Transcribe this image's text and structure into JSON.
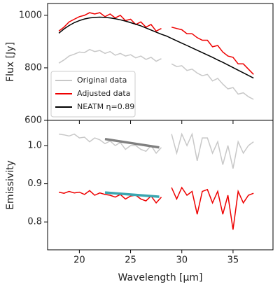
{
  "chart_data": [
    {
      "type": "line",
      "ylabel": "Flux [Jy]",
      "xlim": [
        16.9,
        38.9
      ],
      "xticks": [
        20,
        25,
        30,
        35
      ],
      "ylim": [
        600,
        1045
      ],
      "yticks": [
        600,
        800,
        1000
      ],
      "legend": "lower left",
      "series": [
        {
          "name": "Original data",
          "color": "#c8c8c8",
          "x": [
            18,
            18.5,
            19,
            19.5,
            20,
            20.5,
            21,
            21.5,
            22,
            22.5,
            23,
            23.5,
            24,
            24.5,
            25,
            25.5,
            26,
            26.5,
            27,
            27.5,
            28,
            28.5,
            29,
            29.5,
            30,
            30.5,
            31,
            31.5,
            32,
            32.5,
            33,
            33.5,
            34,
            34.5,
            35,
            35.5,
            36,
            36.5,
            37
          ],
          "values": [
            818,
            830,
            845,
            852,
            860,
            858,
            870,
            862,
            866,
            855,
            862,
            848,
            855,
            845,
            850,
            838,
            845,
            832,
            840,
            825,
            835,
            null,
            815,
            805,
            808,
            790,
            795,
            780,
            770,
            775,
            750,
            760,
            738,
            720,
            725,
            700,
            705,
            690,
            680
          ]
        },
        {
          "name": "Adjusted data",
          "color": "#ee0000",
          "x": [
            18,
            18.5,
            19,
            19.5,
            20,
            20.5,
            21,
            21.5,
            22,
            22.5,
            23,
            23.5,
            24,
            24.5,
            25,
            25.5,
            26,
            26.5,
            27,
            27.5,
            28,
            28.5,
            29,
            29.5,
            30,
            30.5,
            31,
            31.5,
            32,
            32.5,
            33,
            33.5,
            34,
            34.5,
            35,
            35.5,
            36,
            36.5,
            37
          ],
          "values": [
            940,
            955,
            975,
            985,
            995,
            1000,
            1010,
            1005,
            1010,
            995,
            1005,
            990,
            1000,
            980,
            985,
            965,
            975,
            955,
            965,
            940,
            950,
            null,
            955,
            950,
            945,
            930,
            930,
            915,
            905,
            905,
            880,
            885,
            860,
            845,
            840,
            815,
            815,
            795,
            775
          ]
        },
        {
          "name": "NEATM η=0.89",
          "color": "#000000",
          "x": [
            18,
            18.5,
            19,
            19.5,
            20,
            20.5,
            21,
            21.5,
            22,
            22.5,
            23,
            23.5,
            24,
            24.5,
            25,
            25.5,
            26,
            26.5,
            27,
            27.5,
            28,
            28.5,
            29,
            29.5,
            30,
            30.5,
            31,
            31.5,
            32,
            32.5,
            33,
            33.5,
            34,
            34.5,
            35,
            35.5,
            36,
            36.5,
            37
          ],
          "values": [
            932,
            948,
            961,
            972,
            980,
            986,
            990,
            992,
            993,
            992,
            990,
            987,
            983,
            978,
            972,
            966,
            960,
            952,
            944,
            936,
            928,
            921,
            912,
            903,
            894,
            885,
            876,
            867,
            858,
            849,
            840,
            830,
            821,
            811,
            801,
            791,
            781,
            771,
            761
          ]
        }
      ]
    },
    {
      "type": "line",
      "ylabel": "Emissivity",
      "xlabel": "Wavelength [µm]",
      "xlim": [
        16.9,
        38.9
      ],
      "xticks": [
        20,
        25,
        30,
        35
      ],
      "ylim": [
        0.727,
        1.066
      ],
      "yticks": [
        0.8,
        0.9,
        {
          "value": 1,
          "label": "1.0"
        }
      ],
      "series": [
        {
          "color": "#c8c8c8",
          "x": [
            18,
            18.5,
            19,
            19.5,
            20,
            20.5,
            21,
            21.5,
            22,
            22.5,
            23,
            23.5,
            24,
            24.5,
            25,
            25.5,
            26,
            26.5,
            27,
            27.5,
            28,
            28.5,
            29,
            29.5,
            30,
            30.5,
            31,
            31.5,
            32,
            32.5,
            33,
            33.5,
            34,
            34.5,
            35,
            35.5,
            36,
            36.5,
            37
          ],
          "values": [
            1.03,
            1.028,
            1.025,
            1.03,
            1.02,
            1.022,
            1.01,
            1.02,
            1.015,
            1.005,
            1.012,
            1.0,
            1.008,
            0.99,
            1.0,
            1.0,
            0.99,
            0.985,
            1.0,
            0.98,
            0.995,
            null,
            1.03,
            0.98,
            1.03,
            1.0,
            1.03,
            0.96,
            1.02,
            1.02,
            0.98,
            1.01,
            0.95,
            1.0,
            0.94,
            1.01,
            0.98,
            1.0,
            1.01
          ]
        },
        {
          "color": "#ee0000",
          "x": [
            18,
            18.5,
            19,
            19.5,
            20,
            20.5,
            21,
            21.5,
            22,
            22.5,
            23,
            23.5,
            24,
            24.5,
            25,
            25.5,
            26,
            26.5,
            27,
            27.5,
            28,
            28.5,
            29,
            29.5,
            30,
            30.5,
            31,
            31.5,
            32,
            32.5,
            33,
            33.5,
            34,
            34.5,
            35,
            35.5,
            36,
            36.5,
            37
          ],
          "values": [
            0.878,
            0.875,
            0.88,
            0.876,
            0.878,
            0.872,
            0.882,
            0.87,
            0.876,
            0.872,
            0.87,
            0.865,
            0.872,
            0.86,
            0.868,
            0.87,
            0.86,
            0.855,
            0.868,
            0.85,
            0.865,
            null,
            0.89,
            0.86,
            0.89,
            0.87,
            0.88,
            0.82,
            0.88,
            0.885,
            0.85,
            0.88,
            0.82,
            0.87,
            0.78,
            0.88,
            0.85,
            0.87,
            0.875
          ]
        },
        {
          "color": "#808080",
          "x": [
            22.5,
            27.8
          ],
          "values": [
            1.017,
            0.995
          ]
        },
        {
          "color": "#3aa6b0",
          "x": [
            22.5,
            27.8
          ],
          "values": [
            0.877,
            0.866
          ]
        }
      ]
    }
  ]
}
